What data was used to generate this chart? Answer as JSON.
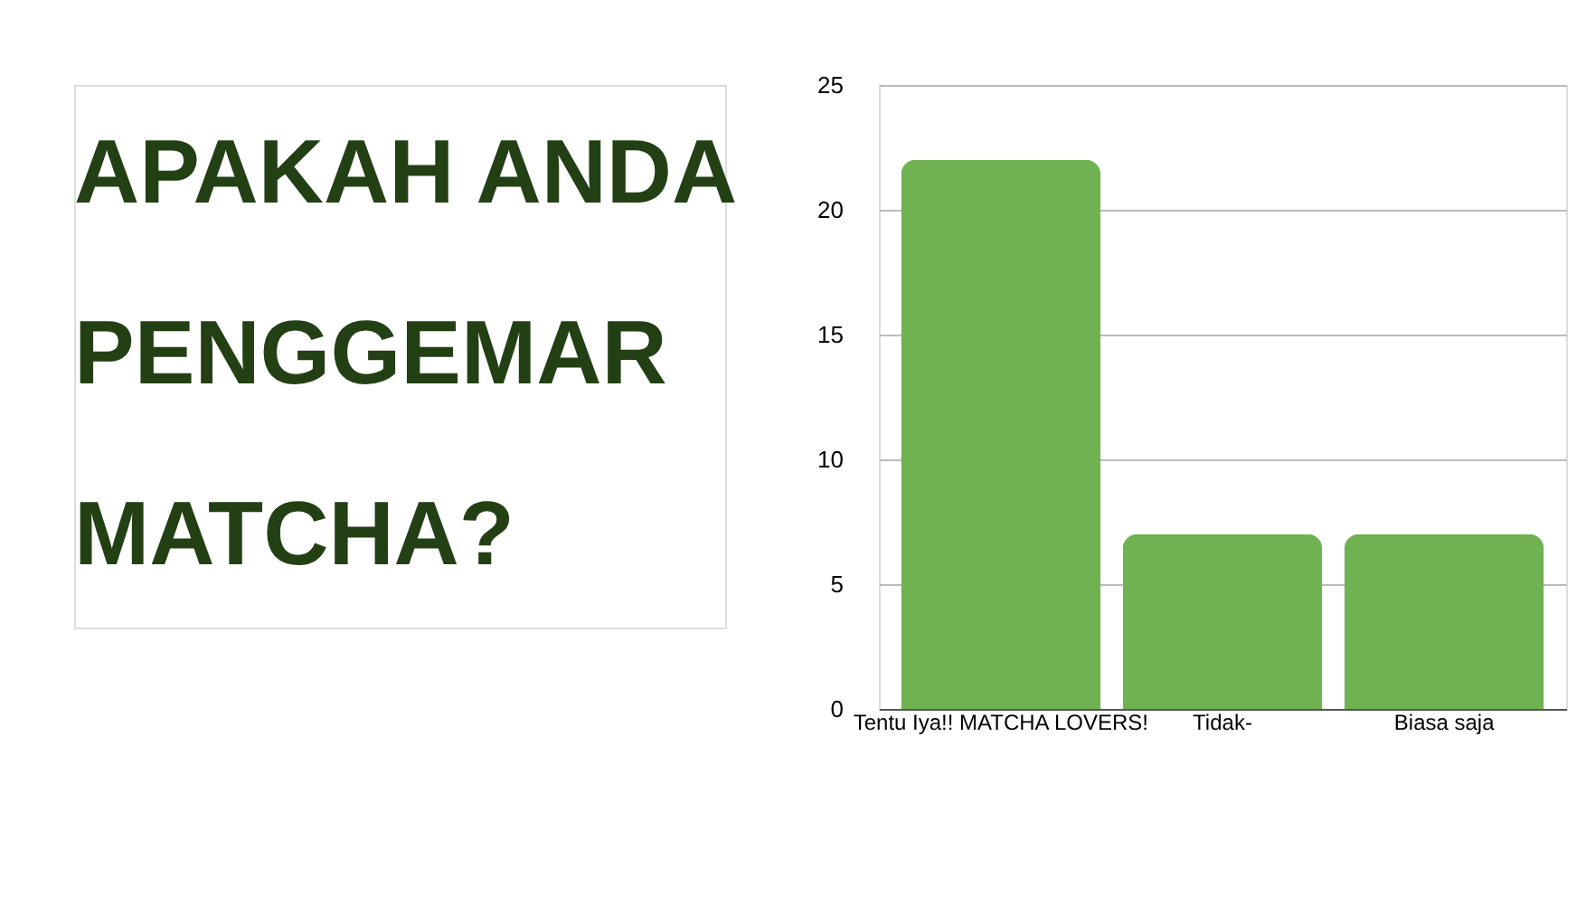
{
  "chart_data": {
    "type": "bar",
    "title": "APAKAH ANDA PENGGEMAR MATCHA?",
    "categories": [
      "Tentu Iya!! MATCHA LOVERS!",
      "Tidak-",
      "Biasa saja"
    ],
    "values": [
      22,
      7,
      7
    ],
    "color": "#70b252",
    "ylim": [
      0,
      25
    ],
    "yticks": [
      0,
      5,
      10,
      15,
      20,
      25
    ],
    "grid": "y"
  }
}
